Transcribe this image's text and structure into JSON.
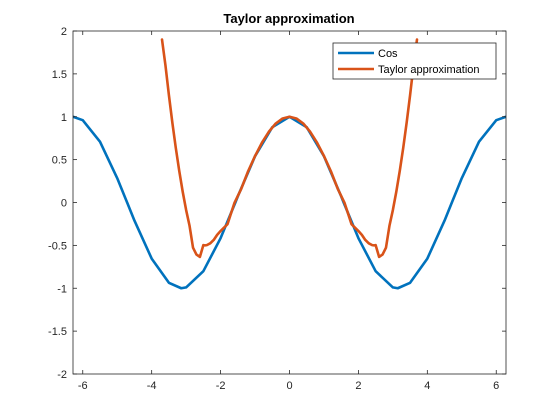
{
  "chart_data": {
    "type": "line",
    "title": "Taylor approximation",
    "xlabel": "",
    "ylabel": "",
    "xlim": [
      -6.283,
      6.283
    ],
    "ylim": [
      -2,
      2
    ],
    "x_ticks": [
      -6,
      -4,
      -2,
      0,
      2,
      4,
      6
    ],
    "y_ticks": [
      -2,
      -1.5,
      -1,
      -0.5,
      0,
      0.5,
      1,
      1.5,
      2
    ],
    "grid": false,
    "legend_position": "top-right",
    "series": [
      {
        "name": "Cos",
        "color": "#0072BD",
        "x": [
          -6.283,
          -6.0,
          -5.5,
          -5.0,
          -4.712,
          -4.5,
          -4.0,
          -3.5,
          -3.142,
          -3.0,
          -2.5,
          -2.0,
          -1.571,
          -1.5,
          -1.0,
          -0.5,
          0.0,
          0.5,
          1.0,
          1.5,
          1.571,
          2.0,
          2.5,
          3.0,
          3.142,
          3.5,
          4.0,
          4.5,
          4.712,
          5.0,
          5.5,
          6.0,
          6.283
        ],
        "y": [
          1.0,
          0.96,
          0.709,
          0.284,
          0.0,
          -0.211,
          -0.654,
          -0.936,
          -1.0,
          -0.99,
          -0.801,
          -0.416,
          0.0,
          0.071,
          0.54,
          0.878,
          1.0,
          0.878,
          0.54,
          0.071,
          0.0,
          -0.416,
          -0.801,
          -0.99,
          -1.0,
          -0.936,
          -0.654,
          -0.211,
          0.0,
          0.284,
          0.709,
          0.96,
          1.0
        ]
      },
      {
        "name": "Taylor approximation",
        "color": "#D95319",
        "x": [
          -3.7,
          -3.6,
          -3.5,
          -3.4,
          -3.3,
          -3.2,
          -3.1,
          -3.0,
          -2.9,
          -2.8,
          -2.7,
          -2.6,
          -2.5,
          -2.449,
          -2.4,
          -2.3,
          -2.2,
          -2.1,
          -2.0,
          -1.8,
          -1.6,
          -1.4,
          -1.2,
          -1.0,
          -0.8,
          -0.6,
          -0.4,
          -0.2,
          0.0,
          0.2,
          0.4,
          0.6,
          0.8,
          1.0,
          1.2,
          1.4,
          1.6,
          1.8,
          2.0,
          2.1,
          2.2,
          2.3,
          2.4,
          2.449,
          2.5,
          2.6,
          2.7,
          2.8,
          2.9,
          3.0,
          3.1,
          3.2,
          3.3,
          3.4,
          3.5,
          3.6,
          3.7
        ],
        "y": [
          1.9,
          1.6,
          1.253,
          0.932,
          0.637,
          0.369,
          0.127,
          -0.088,
          -0.273,
          -0.527,
          -0.607,
          -0.634,
          -0.497,
          -0.5,
          -0.497,
          -0.476,
          -0.437,
          -0.378,
          -0.333,
          -0.253,
          -0.007,
          0.16,
          0.366,
          0.542,
          0.697,
          0.825,
          0.921,
          0.98,
          1.0,
          0.98,
          0.921,
          0.825,
          0.697,
          0.542,
          0.366,
          0.16,
          -0.007,
          -0.253,
          -0.333,
          -0.378,
          -0.437,
          -0.476,
          -0.497,
          -0.5,
          -0.497,
          -0.634,
          -0.607,
          -0.527,
          -0.273,
          -0.088,
          0.127,
          0.369,
          0.637,
          0.932,
          1.253,
          1.6,
          1.9
        ]
      }
    ]
  }
}
